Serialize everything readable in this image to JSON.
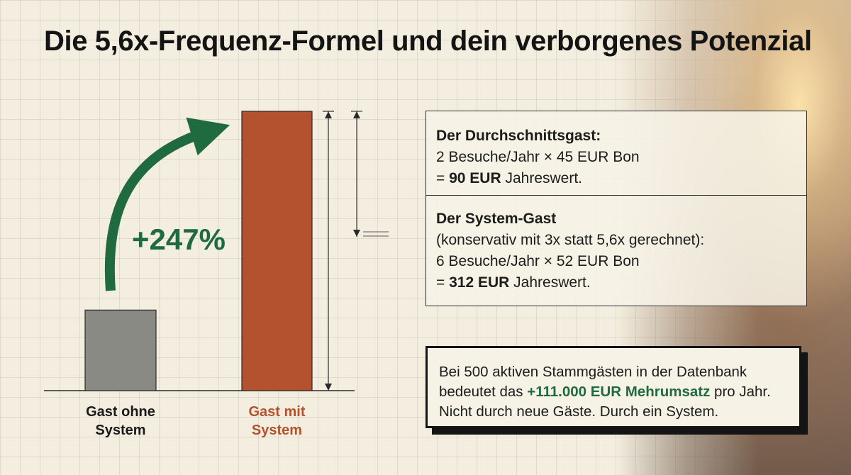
{
  "title": "Die 5,6x-Frequenz-Formel und dein verborgenes Potenzial",
  "chart_data": {
    "type": "bar",
    "categories": [
      [
        "Gast ohne",
        "System"
      ],
      [
        "Gast mit",
        "System"
      ]
    ],
    "values": [
      90,
      312
    ],
    "colors": [
      "#8a8a84",
      "#b4522f"
    ],
    "label_colors": [
      "#1a1a1a",
      "#b4522f"
    ],
    "growth_label": "+247%",
    "growth_color": "#1f6b3f",
    "ylim": [
      0,
      312
    ]
  },
  "info": {
    "average_guest": {
      "heading": "Der Durchschnittsgast:",
      "calc": "2 Besuche/Jahr × 45 EUR Bon",
      "result_prefix": "= ",
      "result_value": "90 EUR",
      "result_suffix": " Jahreswert."
    },
    "system_guest": {
      "heading": "Der System-Gast",
      "note": "(konservativ mit 3x statt 5,6x gerechnet):",
      "calc": "6 Besuche/Jahr × 52 EUR Bon",
      "result_prefix": "= ",
      "result_value": "312 EUR",
      "result_suffix": " Jahreswert."
    }
  },
  "callout": {
    "line1": "Bei 500 aktiven Stammgästen in der Datenbank",
    "line2_prefix": "bedeutet das ",
    "line2_highlight": "+111.000 EUR Mehrumsatz",
    "line2_suffix": " pro Jahr.",
    "line3": "Nicht durch neue Gäste. Durch ein System."
  }
}
